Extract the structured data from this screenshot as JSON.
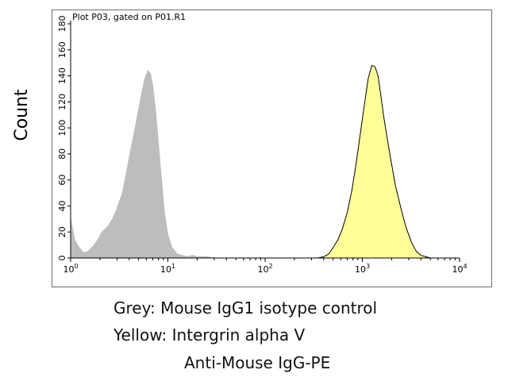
{
  "chart_data": {
    "type": "area",
    "title": "Plot P03, gated on P01.R1",
    "xlabel": "",
    "ylabel": "Count",
    "x_scale": "log",
    "xlim": [
      1,
      10000
    ],
    "ylim": [
      0,
      180
    ],
    "x_ticks": [
      {
        "value": 1,
        "label": "10",
        "exp": "0"
      },
      {
        "value": 10,
        "label": "10",
        "exp": "1"
      },
      {
        "value": 100,
        "label": "10",
        "exp": "2"
      },
      {
        "value": 1000,
        "label": "10",
        "exp": "3"
      },
      {
        "value": 10000,
        "label": "10",
        "exp": "4"
      }
    ],
    "y_ticks": [
      0,
      20,
      40,
      60,
      80,
      100,
      120,
      140,
      160,
      180
    ],
    "grid": false,
    "series": [
      {
        "name": "",
        "color": "#bdbdbd",
        "stroke": "#bdbdbd",
        "x": [
          1.0,
          1.05,
          1.1,
          1.2,
          1.35,
          1.5,
          1.7,
          1.9,
          2.1,
          2.4,
          2.7,
          3.0,
          3.4,
          3.8,
          4.2,
          4.6,
          5.0,
          5.4,
          5.8,
          6.2,
          6.6,
          7.0,
          7.5,
          8.0,
          8.6,
          9.2,
          10.0,
          11,
          12.5,
          14,
          16,
          18,
          20,
          25,
          30
        ],
        "y": [
          30,
          22,
          14,
          9,
          4,
          5,
          9,
          14,
          20,
          24,
          30,
          38,
          50,
          68,
          85,
          100,
          114,
          127,
          138,
          144,
          142,
          132,
          112,
          88,
          60,
          35,
          18,
          8,
          3,
          2,
          1,
          2,
          1,
          1,
          0
        ]
      },
      {
        "name": "",
        "color": "#ffff99",
        "stroke": "#000000",
        "x": [
          350,
          400,
          450,
          500,
          560,
          620,
          700,
          780,
          860,
          950,
          1050,
          1150,
          1250,
          1350,
          1450,
          1550,
          1650,
          1800,
          2000,
          2200,
          2500,
          2800,
          3200,
          3600,
          4000,
          4500,
          5000
        ],
        "y": [
          0,
          1,
          3,
          8,
          14,
          22,
          35,
          52,
          72,
          95,
          118,
          138,
          148,
          147,
          140,
          125,
          110,
          92,
          72,
          55,
          38,
          24,
          12,
          5,
          2,
          1,
          0
        ]
      }
    ]
  },
  "caption": {
    "line1": "Grey: Mouse IgG1 isotype control",
    "line2": "Yellow: Intergrin alpha V",
    "line3": "Anti-Mouse IgG-PE"
  }
}
